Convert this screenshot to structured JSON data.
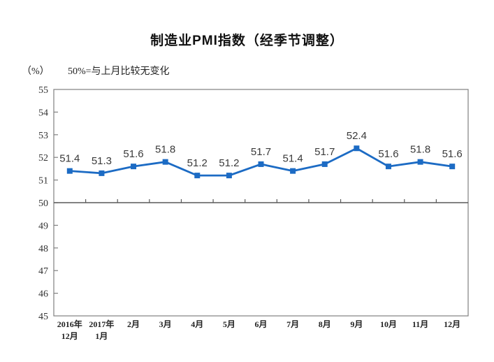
{
  "header": {
    "title": "制造业PMI指数（经季节调整）",
    "unit_label": "（%）",
    "note": "50%=与上月比较无变化"
  },
  "chart_data": {
    "type": "line",
    "title": "制造业PMI指数（经季节调整）",
    "subtitle": "50%=与上月比较无变化",
    "ylabel": "（%）",
    "categories": [
      "2016年\n12月",
      "2017年\n1月",
      "2月",
      "3月",
      "4月",
      "5月",
      "6月",
      "7月",
      "8月",
      "9月",
      "10月",
      "11月",
      "12月"
    ],
    "values": [
      51.4,
      51.3,
      51.6,
      51.8,
      51.2,
      51.2,
      51.7,
      51.4,
      51.7,
      52.4,
      51.6,
      51.8,
      51.6
    ],
    "ylim": [
      45,
      55
    ],
    "yticks": [
      45,
      46,
      47,
      48,
      49,
      50,
      51,
      52,
      53,
      54,
      55
    ],
    "reference_line": 50,
    "grid": false,
    "legend": false,
    "marker": "square",
    "colors": {
      "line": "#1c6bc4",
      "marker": "#1c6bc4",
      "data_label": "#3a3a3a",
      "axis_frame": "#808080",
      "axis_text": "#333333",
      "reference_line": "#595959"
    }
  }
}
